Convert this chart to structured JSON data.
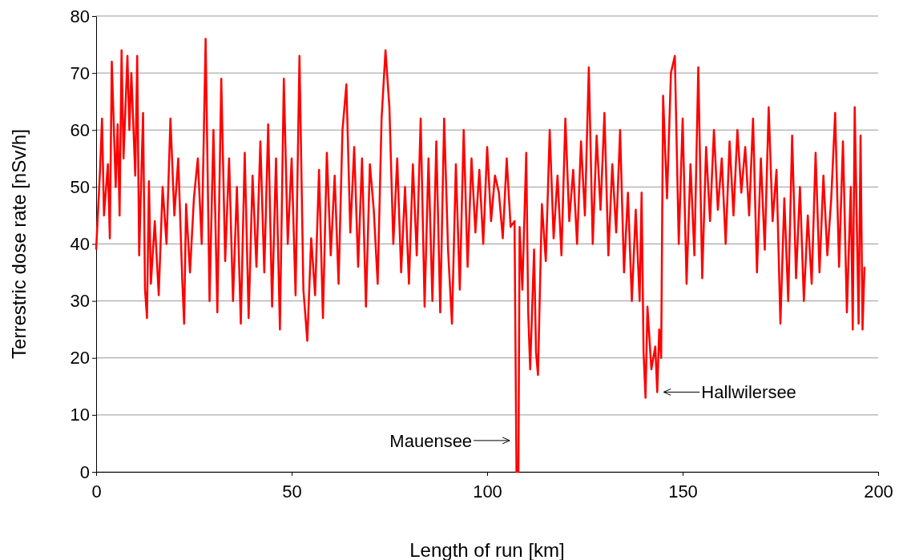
{
  "chart_data": {
    "type": "line",
    "xlabel": "Length of run [km]",
    "ylabel": "Terrestric dose rate [nSv/h]",
    "xlim": [
      0,
      200
    ],
    "xticks": [
      0,
      50,
      100,
      150,
      200
    ],
    "ylim": [
      0,
      80
    ],
    "yticks": [
      0,
      10,
      20,
      30,
      40,
      50,
      60,
      70,
      80
    ],
    "grid": "y",
    "marker": "none",
    "line_style": "solid",
    "annotations": [
      {
        "text": "Mauensee",
        "x": 107.4,
        "y": 5.5
      },
      {
        "text": "Hallwilersee",
        "x": 143.5,
        "y": 14
      }
    ],
    "series": [
      {
        "color": "#ff0000",
        "x": [
          0,
          1,
          1.5,
          2,
          3,
          3.5,
          4,
          5,
          5.5,
          6,
          6.5,
          7,
          8,
          8.5,
          9,
          10,
          10.5,
          11,
          12,
          12.5,
          13,
          13.5,
          14,
          15,
          16,
          17,
          18,
          19,
          20,
          21,
          22,
          22.5,
          23,
          24,
          25,
          26,
          27,
          28,
          29,
          30,
          31,
          32,
          33,
          34,
          35,
          36,
          37,
          38,
          39,
          40,
          41,
          42,
          43,
          44,
          45,
          46,
          47,
          48,
          49,
          50,
          51,
          52,
          53,
          54,
          55,
          56,
          57,
          58,
          59,
          60,
          61,
          62,
          63,
          64,
          65,
          66,
          67,
          68,
          69,
          70,
          71,
          72,
          73,
          74,
          75,
          76,
          77,
          78,
          79,
          80,
          81,
          82,
          83,
          84,
          85,
          86,
          87,
          88,
          89,
          90,
          91,
          92,
          93,
          94,
          95,
          96,
          97,
          98,
          99,
          100,
          101,
          102,
          103,
          104,
          105,
          106,
          107,
          107.5,
          108,
          108.3,
          109,
          110,
          110.5,
          111,
          112,
          112.5,
          113,
          114,
          115,
          116,
          117,
          118,
          119,
          120,
          121,
          122,
          123,
          124,
          125,
          126,
          127,
          128,
          129,
          130,
          131,
          132,
          133,
          134,
          135,
          136,
          137,
          138,
          139,
          139.5,
          140,
          140.5,
          141,
          142,
          143,
          143.5,
          144,
          144.5,
          145,
          146,
          147,
          148,
          149,
          150,
          151,
          152,
          153,
          154,
          155,
          156,
          157,
          158,
          159,
          160,
          161,
          162,
          163,
          164,
          165,
          166,
          167,
          168,
          169,
          170,
          171,
          172,
          173,
          174,
          175,
          176,
          177,
          178,
          179,
          180,
          181,
          182,
          183,
          184,
          185,
          186,
          187,
          188,
          189,
          190,
          191,
          192,
          193,
          193.5,
          194,
          195,
          195.5,
          196,
          196.5
        ],
        "values": [
          39,
          53,
          62,
          45,
          54,
          41,
          72,
          50,
          61,
          45,
          74,
          55,
          73,
          60,
          70,
          52,
          73,
          38,
          63,
          32,
          27,
          51,
          33,
          44,
          31,
          50,
          40,
          62,
          45,
          55,
          34,
          26,
          47,
          35,
          48,
          55,
          40,
          76,
          30,
          60,
          28,
          69,
          37,
          55,
          30,
          50,
          26,
          56,
          27,
          52,
          36,
          58,
          35,
          61,
          29,
          55,
          25,
          69,
          40,
          55,
          31,
          73,
          32,
          23,
          41,
          31,
          53,
          27,
          56,
          38,
          52,
          33,
          60,
          68,
          42,
          57,
          36,
          55,
          29,
          54,
          46,
          33,
          62,
          74,
          64,
          40,
          55,
          35,
          50,
          33,
          54,
          38,
          62,
          29,
          55,
          30,
          58,
          28,
          62,
          39,
          26,
          54,
          32,
          60,
          36,
          55,
          42,
          53,
          40,
          57,
          44,
          52,
          49,
          41,
          55,
          43,
          44,
          0,
          0,
          43,
          32,
          56,
          28,
          18,
          39,
          21,
          17,
          47,
          37,
          60,
          41,
          52,
          38,
          62,
          44,
          53,
          40,
          58,
          45,
          71,
          40,
          59,
          46,
          63,
          38,
          54,
          42,
          60,
          35,
          49,
          30,
          46,
          30,
          49,
          21,
          13,
          29,
          18,
          22,
          14,
          25,
          20,
          66,
          48,
          70,
          73,
          40,
          62,
          33,
          54,
          38,
          71,
          34,
          57,
          44,
          60,
          46,
          55,
          40,
          58,
          45,
          60,
          49,
          57,
          45,
          62,
          35,
          55,
          39,
          64,
          44,
          53,
          26,
          48,
          30,
          59,
          34,
          50,
          30,
          45,
          33,
          56,
          35,
          52,
          38,
          48,
          63,
          36,
          58,
          28,
          50,
          25,
          64,
          26,
          59,
          25,
          36
        ]
      }
    ]
  }
}
